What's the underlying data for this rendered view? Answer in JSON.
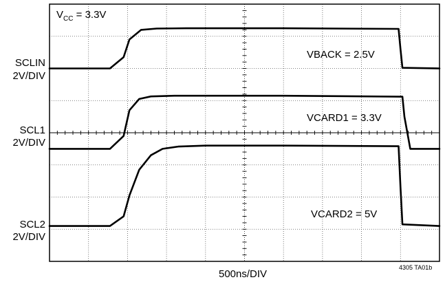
{
  "chart_data": {
    "type": "line",
    "title": "",
    "xlabel": "500ns/DIV",
    "ylabel": "",
    "grid": true,
    "grid_divisions": {
      "x": 10,
      "y": 8
    },
    "xlim": [
      0,
      10
    ],
    "x_unit": "div (500ns/DIV)",
    "series": [
      {
        "name": "SCLIN",
        "scale": "2V/DIV",
        "annotation": "VBACK = 2.5V",
        "x": [
          0,
          1.55,
          1.9,
          2.05,
          2.35,
          2.75,
          3.5,
          6.0,
          8.95,
          9.0,
          9.05,
          10
        ],
        "y": [
          0.0,
          0.0,
          0.35,
          0.9,
          1.2,
          1.24,
          1.25,
          1.25,
          1.23,
          0.6,
          0.02,
          0.0
        ]
      },
      {
        "name": "SCL1",
        "scale": "2V/DIV",
        "annotation": "VCARD1 = 3.3V",
        "x": [
          0,
          1.55,
          1.9,
          2.05,
          2.3,
          2.6,
          3.2,
          6.0,
          9.05,
          9.1,
          9.25,
          10
        ],
        "y": [
          0.0,
          0.0,
          0.4,
          1.2,
          1.55,
          1.63,
          1.65,
          1.65,
          1.62,
          1.0,
          0.0,
          0.0
        ]
      },
      {
        "name": "SCL2",
        "scale": "2V/DIV",
        "annotation": "VCARD2 = 5V",
        "x": [
          0,
          1.55,
          1.9,
          2.05,
          2.3,
          2.6,
          2.9,
          3.3,
          4.0,
          6.0,
          8.95,
          9.0,
          9.05,
          10
        ],
        "y": [
          0.0,
          0.0,
          0.3,
          0.95,
          1.75,
          2.2,
          2.4,
          2.47,
          2.5,
          2.5,
          2.48,
          1.2,
          0.05,
          0.0
        ]
      }
    ]
  },
  "labels": {
    "vcc": "V",
    "vcc_sub": "CC",
    "vcc_value": " = 3.3V",
    "sclin": "SCLIN",
    "sclin_scale": "2V/DIV",
    "scl1": "SCL1",
    "scl1_scale": "2V/DIV",
    "scl2": "SCL2",
    "scl2_scale": "2V/DIV",
    "vback": "VBACK = 2.5V",
    "vcard1": "VCARD1 = 3.3V",
    "vcard2": "VCARD2 = 5V",
    "xaxis": "500ns/DIV",
    "figure_id": "4305 TA01b"
  }
}
